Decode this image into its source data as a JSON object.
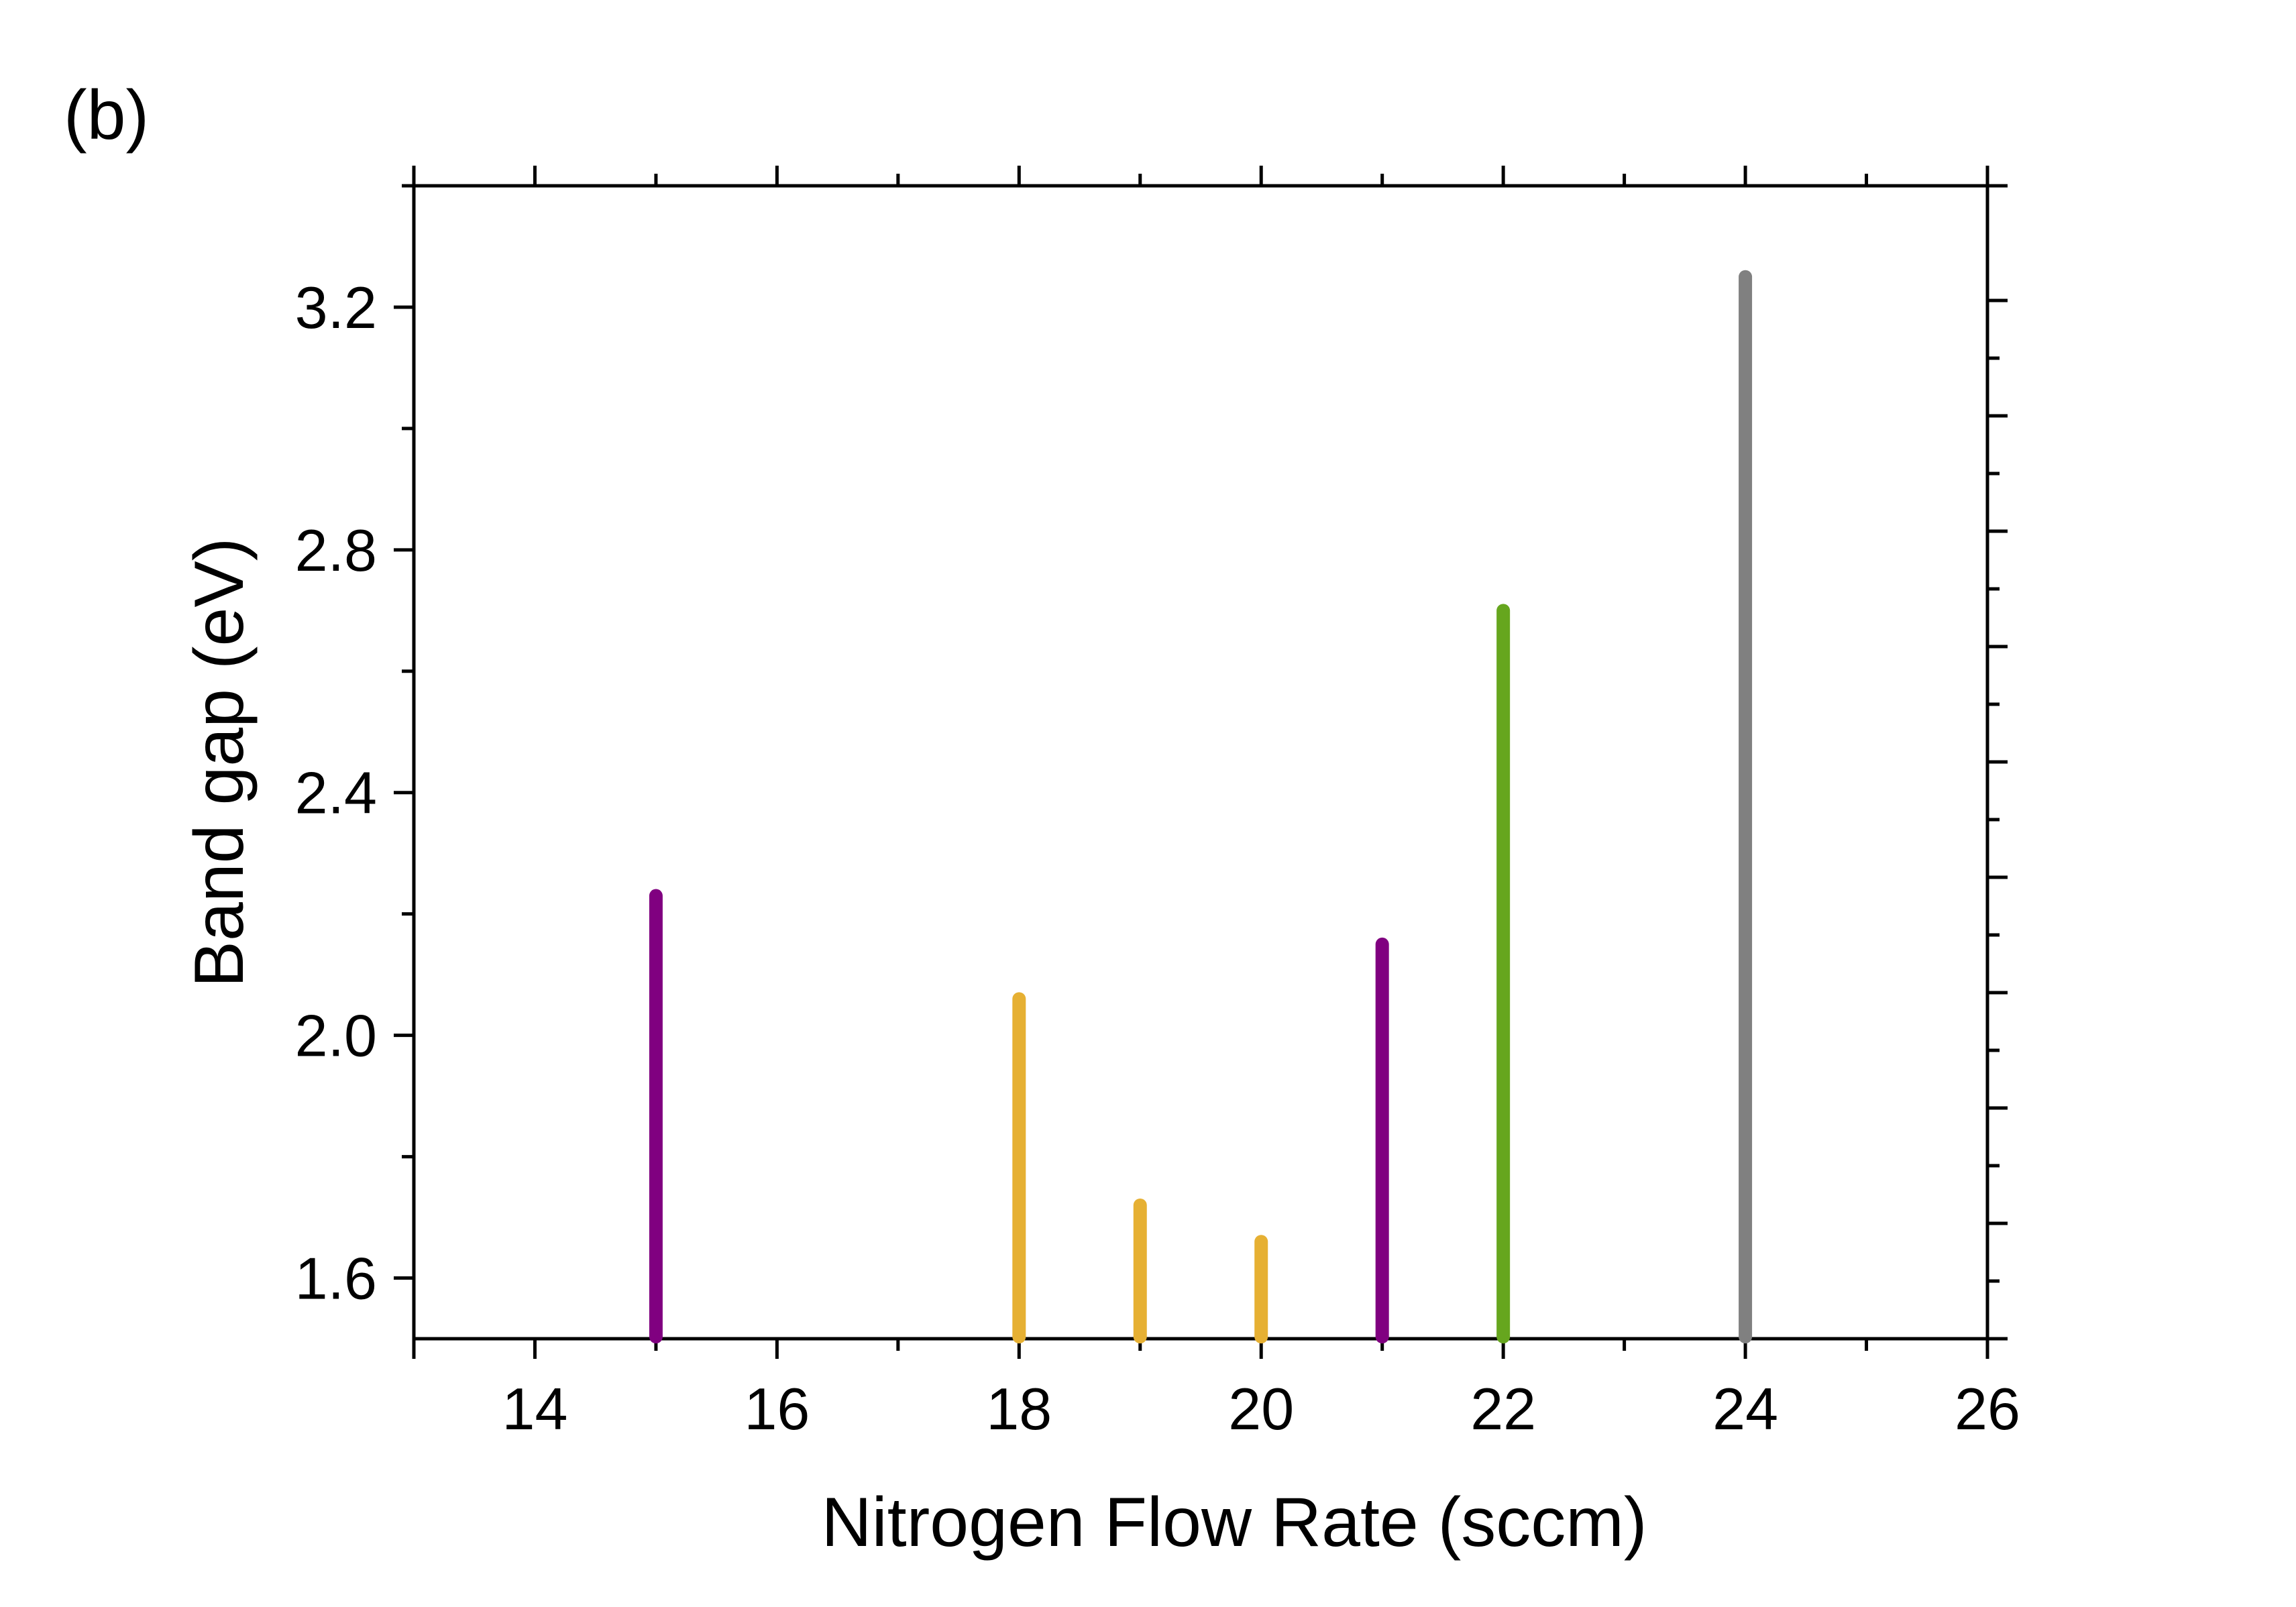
{
  "panel_label": "(b)",
  "chart_data": {
    "type": "bar",
    "title": "",
    "xlabel": "Nitrogen Flow Rate (sccm)",
    "ylabel": "Band gap (eV)",
    "xlim": [
      13,
      26
    ],
    "ylim": [
      1.5,
      3.4
    ],
    "x_ticks": [
      14,
      16,
      18,
      20,
      22,
      24,
      26
    ],
    "x_tick_labels": [
      "14",
      "16",
      "18",
      "20",
      "22",
      "24",
      "26"
    ],
    "y_ticks": [
      1.6,
      2.0,
      2.4,
      2.8,
      3.2
    ],
    "y_tick_labels": [
      "1.6",
      "2.0",
      "2.4",
      "2.8",
      "3.2"
    ],
    "grid": false,
    "legend": "none",
    "series": [
      {
        "x": 15,
        "value": 2.23,
        "color": "#800080"
      },
      {
        "x": 18,
        "value": 2.06,
        "color": "#E6B033"
      },
      {
        "x": 19,
        "value": 1.72,
        "color": "#E6B033"
      },
      {
        "x": 20,
        "value": 1.66,
        "color": "#E6B033"
      },
      {
        "x": 21,
        "value": 2.15,
        "color": "#800080"
      },
      {
        "x": 22,
        "value": 2.7,
        "color": "#66A61E"
      },
      {
        "x": 24,
        "value": 3.25,
        "color": "#808080"
      }
    ]
  }
}
